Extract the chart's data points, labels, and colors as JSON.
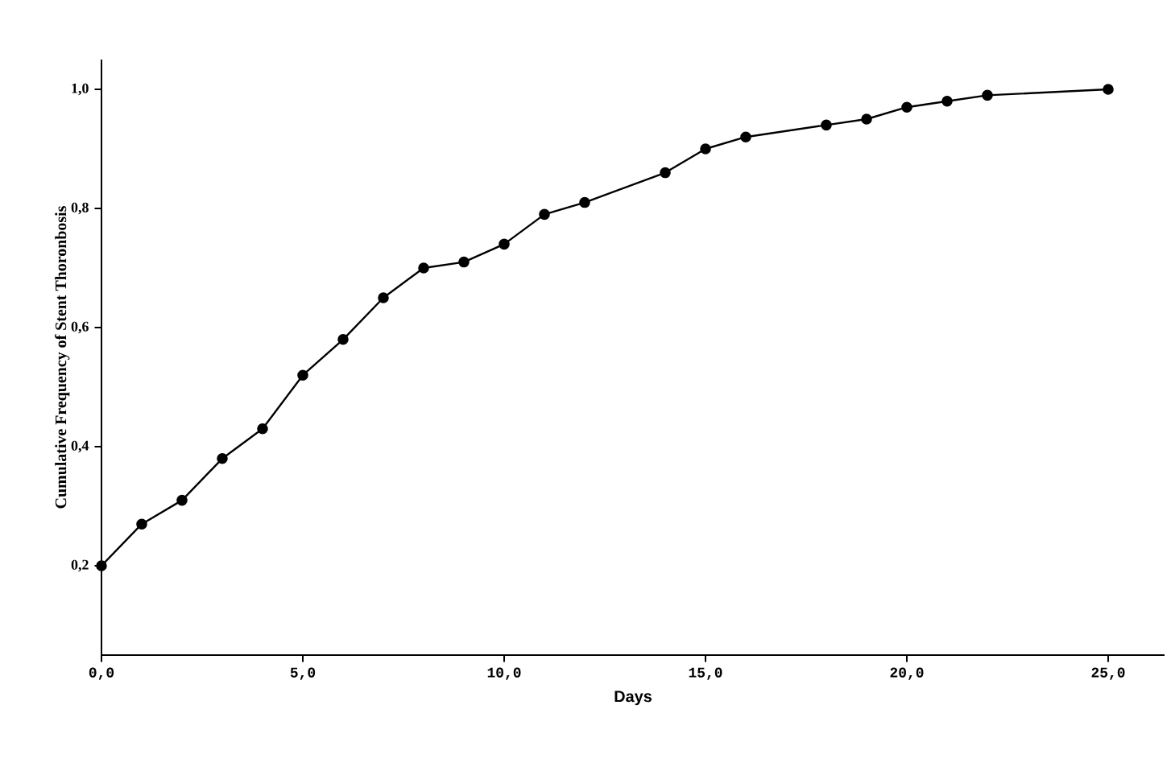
{
  "chart_data": {
    "type": "line",
    "xlabel": "Days",
    "ylabel": "Cumulative Frequency of Stent Thoronbosis",
    "x": [
      0,
      1,
      2,
      3,
      4,
      5,
      6,
      7,
      8,
      9,
      10,
      11,
      12,
      14,
      15,
      16,
      18,
      19,
      20,
      21,
      22,
      25
    ],
    "series": [
      {
        "color": "#000000",
        "values": [
          0.2,
          0.27,
          0.31,
          0.38,
          0.43,
          0.52,
          0.58,
          0.65,
          0.7,
          0.71,
          0.74,
          0.79,
          0.81,
          0.86,
          0.9,
          0.92,
          0.94,
          0.95,
          0.97,
          0.98,
          0.99,
          1.0
        ]
      }
    ],
    "xlim": [
      0,
      26.4
    ],
    "ylim": [
      0.05,
      1.05
    ],
    "xticks": [
      {
        "value": 0,
        "label": "0,0"
      },
      {
        "value": 5,
        "label": "5,0"
      },
      {
        "value": 10,
        "label": "10,0"
      },
      {
        "value": 15,
        "label": "15,0"
      },
      {
        "value": 20,
        "label": "20,0"
      },
      {
        "value": 25,
        "label": "25,0"
      }
    ],
    "yticks": [
      {
        "value": 0.2,
        "label": "0,2"
      },
      {
        "value": 0.4,
        "label": "0,4"
      },
      {
        "value": 0.6,
        "label": "0,6"
      },
      {
        "value": 0.8,
        "label": "0,8"
      },
      {
        "value": 1.0,
        "label": "1,0"
      }
    ],
    "marker": "circle",
    "line_style": "solid",
    "grid": false
  }
}
